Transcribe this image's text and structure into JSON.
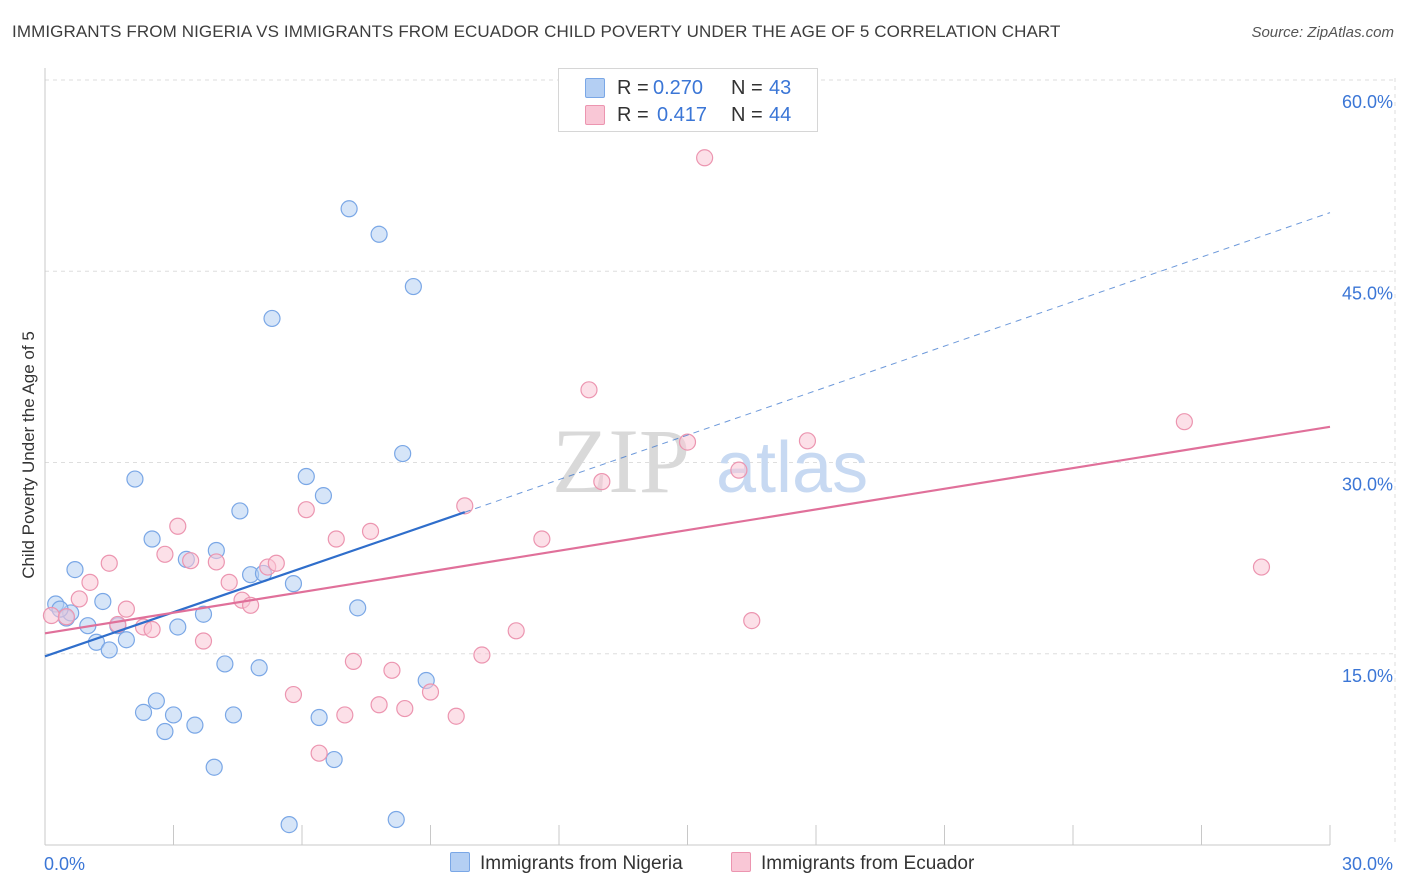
{
  "title": "IMMIGRANTS FROM NIGERIA VS IMMIGRANTS FROM ECUADOR CHILD POVERTY UNDER THE AGE OF 5 CORRELATION CHART",
  "source": "Source: ZipAtlas.com",
  "watermark": {
    "zip": "ZIP",
    "atlas": "atlas"
  },
  "legend": {
    "r_label": "R =",
    "n_label": "N =",
    "rows": [
      {
        "name": "Immigrants from Nigeria",
        "r": "0.270",
        "n": "43",
        "color": "#a9c8f1"
      },
      {
        "name": "Immigrants from Ecuador",
        "r": "0.417",
        "n": "44",
        "color": "#f6b8cb"
      }
    ]
  },
  "chart_data": {
    "type": "scatter",
    "title": "IMMIGRANTS FROM NIGERIA VS IMMIGRANTS FROM ECUADOR CHILD POVERTY UNDER THE AGE OF 5 CORRELATION CHART",
    "xlabel": "",
    "ylabel": "Child Poverty Under the Age of 5",
    "xlim": [
      0,
      30
    ],
    "ylim": [
      0,
      60
    ],
    "x_tick_labels": [
      "0.0%",
      "30.0%"
    ],
    "y_ticks": [
      15,
      30,
      45,
      60
    ],
    "y_tick_labels": [
      "15.0%",
      "30.0%",
      "45.0%",
      "60.0%"
    ],
    "grid": true,
    "series": [
      {
        "name": "Immigrants from Nigeria",
        "color": "#7aa7e6",
        "fill": "#b4cff3",
        "points": [
          [
            0.25,
            18.9
          ],
          [
            0.5,
            17.8
          ],
          [
            0.7,
            21.6
          ],
          [
            1.0,
            17.2
          ],
          [
            1.2,
            15.9
          ],
          [
            1.35,
            19.1
          ],
          [
            1.5,
            15.3
          ],
          [
            1.7,
            17.2
          ],
          [
            1.9,
            16.1
          ],
          [
            2.1,
            28.7
          ],
          [
            2.3,
            10.4
          ],
          [
            2.5,
            24.0
          ],
          [
            2.6,
            11.3
          ],
          [
            2.8,
            8.9
          ],
          [
            3.0,
            10.2
          ],
          [
            3.1,
            17.1
          ],
          [
            3.3,
            22.4
          ],
          [
            3.5,
            9.4
          ],
          [
            3.7,
            18.1
          ],
          [
            3.95,
            6.1
          ],
          [
            4.0,
            23.1
          ],
          [
            4.2,
            14.2
          ],
          [
            4.4,
            10.2
          ],
          [
            4.55,
            26.2
          ],
          [
            4.8,
            21.2
          ],
          [
            5.0,
            13.9
          ],
          [
            5.1,
            21.3
          ],
          [
            5.3,
            41.3
          ],
          [
            5.7,
            1.6
          ],
          [
            5.8,
            20.5
          ],
          [
            6.1,
            28.9
          ],
          [
            6.4,
            10.0
          ],
          [
            6.5,
            27.4
          ],
          [
            6.75,
            6.7
          ],
          [
            7.1,
            49.9
          ],
          [
            7.3,
            18.6
          ],
          [
            7.8,
            47.9
          ],
          [
            8.2,
            2.0
          ],
          [
            8.35,
            30.7
          ],
          [
            8.6,
            43.8
          ],
          [
            8.9,
            12.9
          ],
          [
            0.6,
            18.2
          ],
          [
            0.35,
            18.5
          ]
        ]
      },
      {
        "name": "Immigrants from Ecuador",
        "color": "#ec95b0",
        "fill": "#f9c7d6",
        "points": [
          [
            0.15,
            18.0
          ],
          [
            0.5,
            17.9
          ],
          [
            0.8,
            19.3
          ],
          [
            1.05,
            20.6
          ],
          [
            1.5,
            22.1
          ],
          [
            1.7,
            17.3
          ],
          [
            1.9,
            18.5
          ],
          [
            2.3,
            17.1
          ],
          [
            2.5,
            16.9
          ],
          [
            2.8,
            22.8
          ],
          [
            3.1,
            25.0
          ],
          [
            3.4,
            22.3
          ],
          [
            3.7,
            16.0
          ],
          [
            4.0,
            22.2
          ],
          [
            4.3,
            20.6
          ],
          [
            4.6,
            19.2
          ],
          [
            4.8,
            18.8
          ],
          [
            5.2,
            21.8
          ],
          [
            5.4,
            22.1
          ],
          [
            5.8,
            11.8
          ],
          [
            6.1,
            26.3
          ],
          [
            6.4,
            7.2
          ],
          [
            6.8,
            24.0
          ],
          [
            7.0,
            10.2
          ],
          [
            7.2,
            14.4
          ],
          [
            7.6,
            24.6
          ],
          [
            7.8,
            11.0
          ],
          [
            8.1,
            13.7
          ],
          [
            8.4,
            10.7
          ],
          [
            9.0,
            12.0
          ],
          [
            9.6,
            10.1
          ],
          [
            9.8,
            26.6
          ],
          [
            10.2,
            14.9
          ],
          [
            11.0,
            16.8
          ],
          [
            11.6,
            24.0
          ],
          [
            12.7,
            35.7
          ],
          [
            13.0,
            28.5
          ],
          [
            15.0,
            31.6
          ],
          [
            15.4,
            53.9
          ],
          [
            16.2,
            29.4
          ],
          [
            16.5,
            17.6
          ],
          [
            17.8,
            31.7
          ],
          [
            26.6,
            33.2
          ],
          [
            28.4,
            21.8
          ]
        ]
      }
    ],
    "trend_lines": [
      {
        "name": "Immigrants from Nigeria",
        "color": "#2f6ecb",
        "solid": [
          [
            0,
            14.8
          ],
          [
            9.8,
            26.1
          ]
        ],
        "dashed": [
          [
            9.8,
            26.1
          ],
          [
            30,
            49.6
          ]
        ]
      },
      {
        "name": "Immigrants from Ecuador",
        "color": "#e0709a",
        "solid": [
          [
            0,
            16.6
          ],
          [
            30,
            32.8
          ]
        ]
      }
    ]
  }
}
